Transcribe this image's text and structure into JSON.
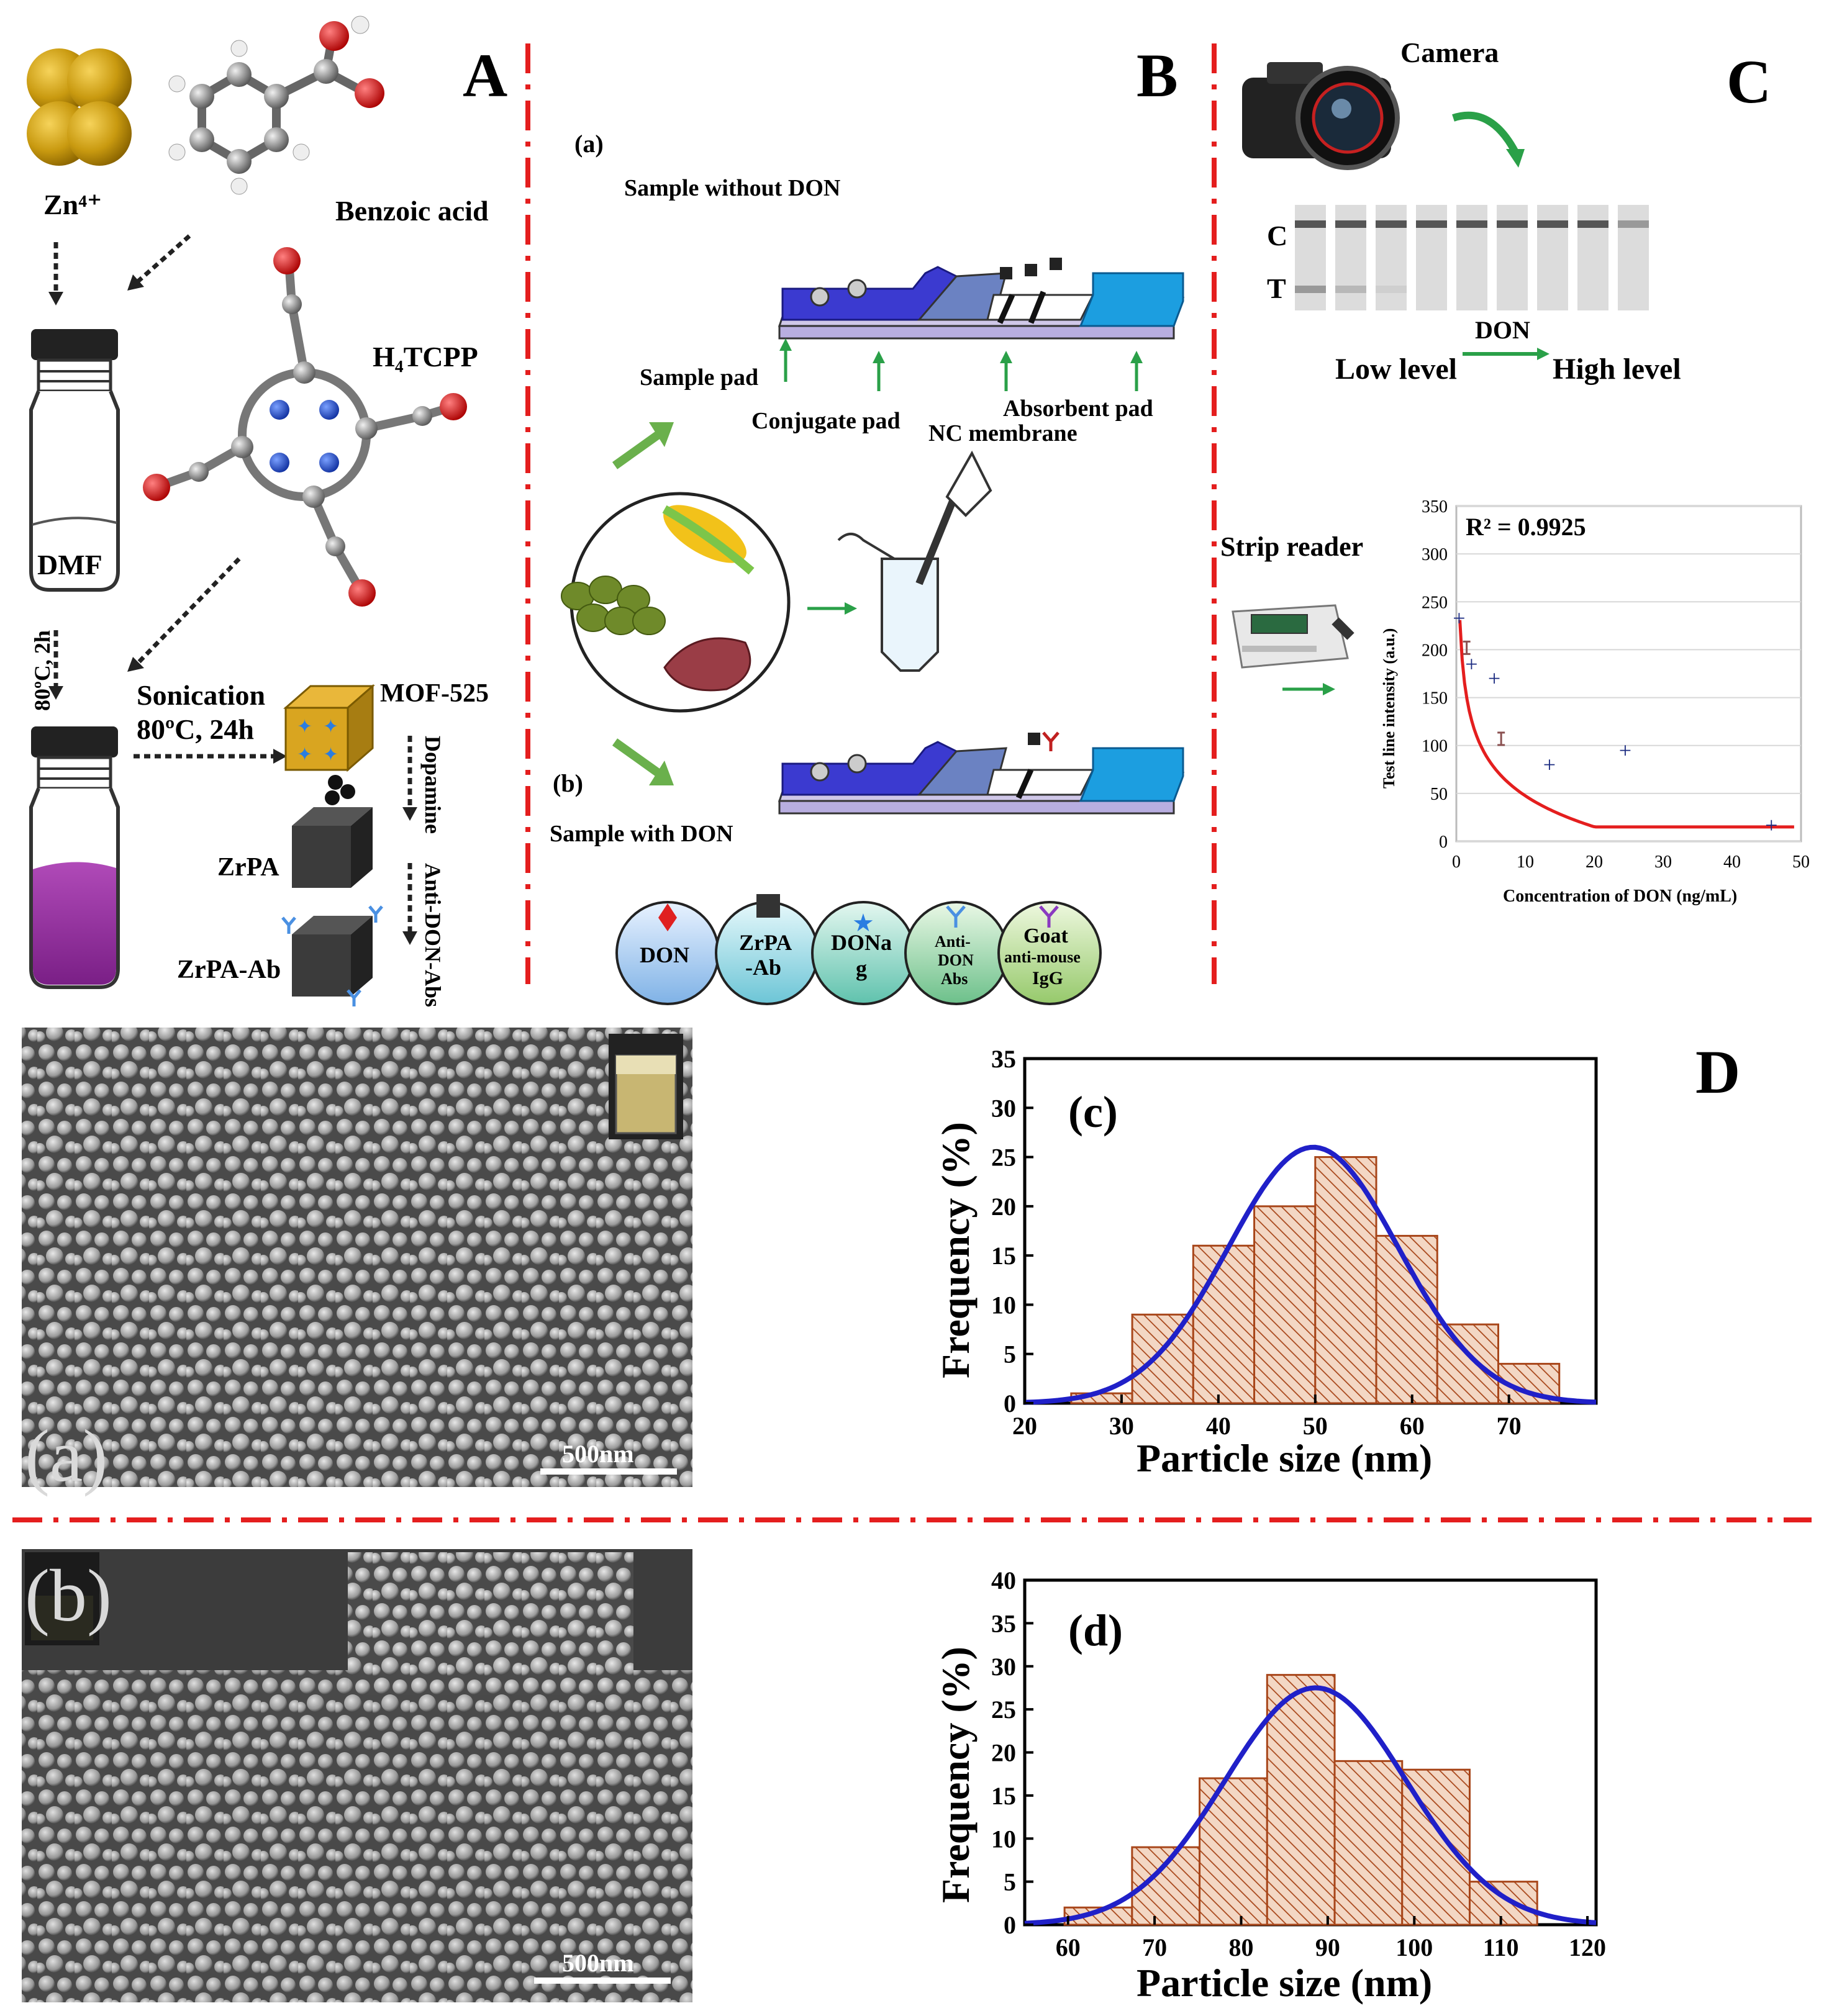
{
  "panel_letters": {
    "A": "A",
    "B": "B",
    "C": "C",
    "D": "D"
  },
  "panelA": {
    "zn_label": "Zn⁴⁺",
    "benzoic_label": "Benzoic acid",
    "h4tcpp_label": "H₄TCPP",
    "dmf_label": "DMF",
    "heat_label": "80ºC, 2h",
    "sonication_label": "Sonication",
    "sonication_temp": "80ºC, 24h",
    "mof_label": "MOF-525",
    "dopamine_label": "Dopamine",
    "zrpa_label": "ZrPA",
    "antidon_label": "Anti-DON-Abs",
    "zrpaab_label": "ZrPA-Ab"
  },
  "panelB": {
    "a_label": "(a)",
    "b_label": "(b)",
    "without_label": "Sample without DON",
    "with_label": "Sample with DON",
    "sample_pad": "Sample pad",
    "conjugate_pad": "Conjugate pad",
    "nc_membrane": "NC membrane",
    "absorbent_pad": "Absorbent pad",
    "legend": [
      "DON",
      "ZrPA",
      "-Ab",
      "DONa",
      "g",
      "Anti-",
      "DON",
      "Abs",
      "Goat",
      "anti-mouse",
      "IgG"
    ]
  },
  "panelC": {
    "camera_label": "Camera",
    "c_line": "C",
    "t_line": "T",
    "don_label": "DON",
    "low_label": "Low level",
    "high_label": "High level",
    "reader_label": "Strip reader",
    "r2_label": "R² = 0.9925",
    "plot": {
      "xlabel": "Concentration  of DON (ng/mL)",
      "ylabel": "Test line intensity (a.u.)",
      "xticks": [
        "0",
        "10",
        "20",
        "30",
        "40",
        "50"
      ],
      "yticks": [
        "0",
        "50",
        "100",
        "150",
        "200",
        "250",
        "300",
        "350"
      ],
      "points": [
        [
          0.4,
          233
        ],
        [
          2.2,
          185
        ],
        [
          5.5,
          170
        ],
        [
          13.5,
          80
        ],
        [
          24.5,
          95
        ],
        [
          45.7,
          17
        ]
      ],
      "error_points": [
        [
          1.5,
          202
        ],
        [
          6.5,
          107
        ]
      ],
      "xlim": [
        0,
        50
      ],
      "ylim": [
        0,
        350
      ]
    }
  },
  "panelD": {
    "sem_a_label": "(a)",
    "sem_b_label": "(b)",
    "scale_a": "500nm",
    "scale_b": "500nm"
  },
  "chart_data": [
    {
      "type": "bar",
      "title": "(c)",
      "xlabel": "Particle size (nm)",
      "ylabel": "Frequency (%)",
      "xlim": [
        20,
        79
      ],
      "ylim": [
        0,
        35
      ],
      "xticks": [
        "20",
        "30",
        "40",
        "50",
        "60",
        "70"
      ],
      "yticks": [
        "0",
        "5",
        "10",
        "15",
        "20",
        "25",
        "30",
        "35"
      ],
      "bin_edges": [
        24.8,
        31.1,
        37.4,
        43.7,
        50.0,
        56.3,
        62.6,
        68.9,
        75.2
      ],
      "values": [
        1,
        9,
        16,
        20,
        25,
        17,
        8,
        4
      ],
      "fit": {
        "mean": 49.8,
        "sd": 8.8,
        "peak": 26
      }
    },
    {
      "type": "bar",
      "title": "(d)",
      "xlabel": "Particle size (nm)",
      "ylabel": "Frequency (%)",
      "xlim": [
        55,
        121
      ],
      "ylim": [
        0,
        40
      ],
      "xticks": [
        "60",
        "70",
        "80",
        "90",
        "100",
        "110",
        "120"
      ],
      "yticks": [
        "0",
        "5",
        "10",
        "15",
        "20",
        "25",
        "30",
        "35",
        "40"
      ],
      "bin_edges": [
        59.6,
        67.4,
        75.2,
        83.0,
        90.8,
        98.6,
        106.4,
        114.2
      ],
      "values": [
        2,
        9,
        17,
        29,
        19,
        18,
        5
      ],
      "fit": {
        "mean": 88.6,
        "sd": 10.5,
        "peak": 27.5
      }
    }
  ]
}
